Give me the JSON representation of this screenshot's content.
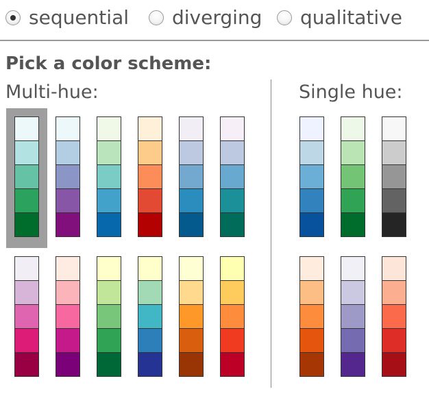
{
  "scheme_types": [
    {
      "label": "sequential",
      "checked": true
    },
    {
      "label": "diverging",
      "checked": false
    },
    {
      "label": "qualitative",
      "checked": false
    }
  ],
  "heading": "Pick a color scheme:",
  "multi_hue_label": "Multi-hue:",
  "single_hue_label": "Single hue:",
  "selected_palette": "multi-hue-1",
  "palettes": {
    "multi_hue": [
      {
        "id": "multi-hue-1",
        "colors": [
          "#edf8fb",
          "#b2e2e2",
          "#66c2a4",
          "#2ca25f",
          "#006d2c"
        ]
      },
      {
        "id": "multi-hue-2",
        "colors": [
          "#edf8fb",
          "#b3cde3",
          "#8c96c6",
          "#8856a7",
          "#810f7c"
        ]
      },
      {
        "id": "multi-hue-3",
        "colors": [
          "#f0f9e8",
          "#bae4bc",
          "#7bccc4",
          "#43a2ca",
          "#0868ac"
        ]
      },
      {
        "id": "multi-hue-4",
        "colors": [
          "#fef0d9",
          "#fdcc8a",
          "#fc8d59",
          "#e34a33",
          "#b30000"
        ]
      },
      {
        "id": "multi-hue-5",
        "colors": [
          "#f1eef6",
          "#bdc9e1",
          "#74a9cf",
          "#2b8cbe",
          "#045a8d"
        ]
      },
      {
        "id": "multi-hue-6",
        "colors": [
          "#f6eff7",
          "#bdc9e1",
          "#67a9cf",
          "#1c9099",
          "#016c59"
        ]
      },
      {
        "id": "multi-hue-7",
        "colors": [
          "#f1eef6",
          "#d7b5d8",
          "#df65b0",
          "#dd1c77",
          "#980043"
        ]
      },
      {
        "id": "multi-hue-8",
        "colors": [
          "#feebe2",
          "#fbb4b9",
          "#f768a1",
          "#c51b8a",
          "#7a0177"
        ]
      },
      {
        "id": "multi-hue-9",
        "colors": [
          "#ffffcc",
          "#c2e699",
          "#78c679",
          "#31a354",
          "#006837"
        ]
      },
      {
        "id": "multi-hue-10",
        "colors": [
          "#ffffcc",
          "#a1dab4",
          "#41b6c4",
          "#2c7fb8",
          "#253494"
        ]
      },
      {
        "id": "multi-hue-11",
        "colors": [
          "#ffffd4",
          "#fed98e",
          "#fe9929",
          "#d95f0e",
          "#993404"
        ]
      },
      {
        "id": "multi-hue-12",
        "colors": [
          "#ffffb2",
          "#fecc5c",
          "#fd8d3c",
          "#f03b20",
          "#bd0026"
        ]
      }
    ],
    "single_hue": [
      {
        "id": "single-hue-1",
        "colors": [
          "#eff3ff",
          "#bdd7e7",
          "#6baed6",
          "#3182bd",
          "#08519c"
        ]
      },
      {
        "id": "single-hue-2",
        "colors": [
          "#edf8e9",
          "#bae4b3",
          "#74c476",
          "#31a354",
          "#006d2c"
        ]
      },
      {
        "id": "single-hue-3",
        "colors": [
          "#f7f7f7",
          "#cccccc",
          "#969696",
          "#636363",
          "#252525"
        ]
      },
      {
        "id": "single-hue-4",
        "colors": [
          "#feedde",
          "#fdbe85",
          "#fd8d3c",
          "#e6550d",
          "#a63603"
        ]
      },
      {
        "id": "single-hue-5",
        "colors": [
          "#f2f0f7",
          "#cbc9e2",
          "#9e9ac8",
          "#756bb1",
          "#54278f"
        ]
      },
      {
        "id": "single-hue-6",
        "colors": [
          "#fee5d9",
          "#fcae91",
          "#fb6a4a",
          "#de2d26",
          "#a50f15"
        ]
      }
    ]
  }
}
